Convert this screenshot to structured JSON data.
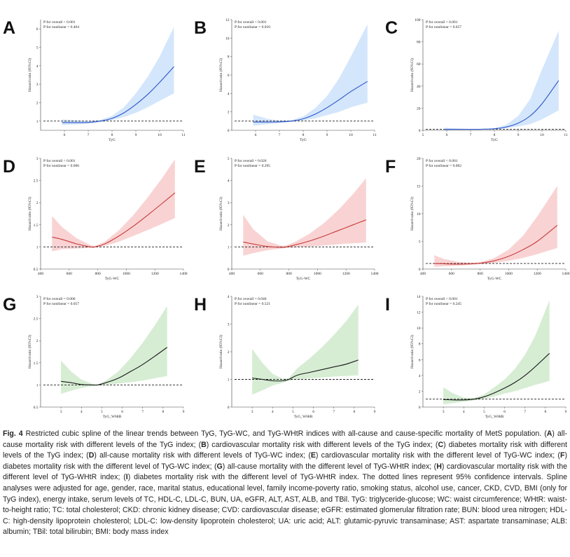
{
  "colors": {
    "blue": {
      "line": "#2c55c9",
      "band": "#d4e6fb"
    },
    "red": {
      "line": "#c63a3a",
      "band": "#f9d3d3"
    },
    "green": {
      "line": "#1a1a1a",
      "band": "#d6edd3"
    }
  },
  "chart_data": [
    {
      "panel": "A",
      "type": "line",
      "xlabel": "TyG",
      "ylabel": "Hazard ratio (95%CI)",
      "p_overall": "P for overall < 0.001",
      "p_nonlinear": "P for nonlinear = 0.404",
      "xlim": [
        5,
        11
      ],
      "xticks": [
        6,
        7,
        8,
        9,
        10,
        11
      ],
      "ylim": [
        0.5,
        6.5
      ],
      "yticks": [
        1,
        2,
        3,
        4,
        5,
        6
      ],
      "ref": 1,
      "color": "blue",
      "x": [
        5.9,
        6.5,
        7.0,
        7.5,
        8.0,
        8.5,
        9.0,
        9.5,
        10.0,
        10.6
      ],
      "y": [
        0.92,
        0.92,
        0.93,
        1.0,
        1.15,
        1.45,
        1.9,
        2.45,
        3.1,
        3.95
      ],
      "lower": [
        0.78,
        0.82,
        0.86,
        0.94,
        1.05,
        1.22,
        1.45,
        1.75,
        2.1,
        2.5
      ],
      "upper": [
        1.1,
        1.04,
        1.0,
        1.06,
        1.28,
        1.75,
        2.5,
        3.4,
        4.5,
        6.1
      ]
    },
    {
      "panel": "B",
      "type": "line",
      "xlabel": "TyG",
      "ylabel": "Hazard ratio (95%CI)",
      "p_overall": "P for overall < 0.001",
      "p_nonlinear": "P for nonlinear = 0.010",
      "xlim": [
        5,
        11
      ],
      "xticks": [
        6,
        7,
        8,
        9,
        10,
        11
      ],
      "ylim": [
        0,
        12
      ],
      "yticks": [
        0,
        2,
        4,
        6,
        8,
        10,
        12
      ],
      "ref": 1,
      "color": "blue",
      "x": [
        5.9,
        6.5,
        7.0,
        7.5,
        8.0,
        8.5,
        9.0,
        9.5,
        10.0,
        10.7
      ],
      "y": [
        0.9,
        0.9,
        0.92,
        1.0,
        1.25,
        1.75,
        2.45,
        3.3,
        4.2,
        5.3
      ],
      "lower": [
        0.5,
        0.65,
        0.8,
        0.92,
        1.05,
        1.3,
        1.65,
        2.0,
        2.5,
        3.0
      ],
      "upper": [
        1.7,
        1.25,
        1.06,
        1.1,
        1.5,
        2.4,
        3.7,
        5.6,
        8.0,
        11.5
      ]
    },
    {
      "panel": "C",
      "type": "line",
      "xlabel": "TyG",
      "ylabel": "Hazard ratio (95%CI)",
      "p_overall": "P for overall < 0.001",
      "p_nonlinear": "P for nonlinear = 0.657",
      "xlim": [
        5,
        11
      ],
      "xticks": [
        5,
        6,
        7,
        8,
        9,
        10,
        11
      ],
      "ylim": [
        0,
        100
      ],
      "yticks": [
        0,
        20,
        40,
        60,
        80,
        100
      ],
      "ref": 1,
      "color": "blue",
      "x": [
        5.9,
        6.5,
        7.0,
        7.5,
        8.0,
        8.5,
        9.0,
        9.5,
        10.0,
        10.7
      ],
      "y": [
        0.9,
        0.9,
        0.9,
        1.0,
        1.4,
        3.0,
        6.5,
        13.0,
        24.0,
        45.0
      ],
      "lower": [
        0.3,
        0.5,
        0.7,
        0.9,
        1.1,
        2.0,
        3.5,
        5.5,
        10.0,
        18.0
      ],
      "upper": [
        2.5,
        1.6,
        1.2,
        1.2,
        2.0,
        5.0,
        13.0,
        28.0,
        55.0,
        90.0
      ]
    },
    {
      "panel": "D",
      "type": "line",
      "xlabel": "TyG-WC",
      "ylabel": "Hazard ratio (95%CI)",
      "p_overall": "P for overall < 0.001",
      "p_nonlinear": "P for nonlinear = 0.006",
      "xlim": [
        400,
        1400
      ],
      "xticks": [
        400,
        600,
        800,
        1000,
        1200,
        1400
      ],
      "ylim": [
        0.5,
        3.0
      ],
      "yticks": [
        0.5,
        1.0,
        1.5,
        2.0,
        2.5,
        3.0
      ],
      "ref": 1,
      "color": "red",
      "x": [
        480,
        550,
        650,
        750,
        780,
        850,
        950,
        1050,
        1150,
        1250,
        1340
      ],
      "y": [
        1.22,
        1.17,
        1.07,
        1.0,
        1.0,
        1.07,
        1.25,
        1.47,
        1.72,
        1.98,
        2.22
      ],
      "lower": [
        0.9,
        0.95,
        0.96,
        0.98,
        0.99,
        1.02,
        1.12,
        1.25,
        1.38,
        1.52,
        1.65
      ],
      "upper": [
        1.7,
        1.45,
        1.2,
        1.04,
        1.02,
        1.12,
        1.38,
        1.72,
        2.12,
        2.55,
        2.98
      ]
    },
    {
      "panel": "E",
      "type": "line",
      "xlabel": "TyG-WC",
      "ylabel": "Hazard ratio (95%CI)",
      "p_overall": "P for overall = 0.026",
      "p_nonlinear": "P for nonlinear = 0.295",
      "xlim": [
        400,
        1400
      ],
      "xticks": [
        400,
        600,
        800,
        1000,
        1200,
        1400
      ],
      "ylim": [
        0,
        5
      ],
      "yticks": [
        0,
        1,
        2,
        3,
        4,
        5
      ],
      "ref": 1,
      "color": "red",
      "x": [
        480,
        550,
        650,
        750,
        780,
        850,
        950,
        1050,
        1150,
        1250,
        1340
      ],
      "y": [
        1.22,
        1.13,
        1.02,
        0.98,
        1.0,
        1.1,
        1.28,
        1.5,
        1.75,
        2.0,
        2.22
      ],
      "lower": [
        0.6,
        0.72,
        0.85,
        0.93,
        0.95,
        0.98,
        1.02,
        1.07,
        1.12,
        1.16,
        1.2
      ],
      "upper": [
        2.45,
        1.8,
        1.25,
        1.05,
        1.06,
        1.25,
        1.62,
        2.1,
        2.7,
        3.4,
        4.1
      ]
    },
    {
      "panel": "F",
      "type": "line",
      "xlabel": "TyG-WC",
      "ylabel": "Hazard ratio (95%CI)",
      "p_overall": "P for overall < 0.001",
      "p_nonlinear": "P for nonlinear = 0.002",
      "xlim": [
        400,
        1400
      ],
      "xticks": [
        400,
        600,
        800,
        1000,
        1200,
        1400
      ],
      "ylim": [
        0,
        20
      ],
      "yticks": [
        0,
        5,
        10,
        15,
        20
      ],
      "ref": 1,
      "color": "red",
      "x": [
        480,
        550,
        650,
        750,
        800,
        900,
        1000,
        1100,
        1200,
        1340
      ],
      "y": [
        1.0,
        0.95,
        0.88,
        0.95,
        1.05,
        1.5,
        2.3,
        3.5,
        5.0,
        7.9
      ],
      "lower": [
        0.4,
        0.5,
        0.6,
        0.8,
        0.9,
        1.1,
        1.5,
        2.0,
        2.7,
        3.8
      ],
      "upper": [
        2.5,
        1.8,
        1.3,
        1.15,
        1.25,
        2.0,
        3.5,
        6.0,
        9.5,
        15.0
      ]
    },
    {
      "panel": "G",
      "type": "line",
      "xlabel": "TyG_WHtR",
      "ylabel": "Hazard ratio (95%CI)",
      "p_overall": "P for overall = 0.006",
      "p_nonlinear": "P for nonlinear = 0.057",
      "xlim": [
        2,
        9
      ],
      "xticks": [
        3,
        4,
        5,
        6,
        7,
        8,
        9
      ],
      "ylim": [
        0.5,
        3.0
      ],
      "yticks": [
        0.5,
        1.0,
        1.5,
        2.0,
        2.5,
        3.0
      ],
      "ref": 1,
      "color": "green",
      "x": [
        3.0,
        3.5,
        4.0,
        4.5,
        4.8,
        5.2,
        5.8,
        6.4,
        7.0,
        7.6,
        8.2
      ],
      "y": [
        1.08,
        1.05,
        1.01,
        1.0,
        1.0,
        1.05,
        1.15,
        1.3,
        1.46,
        1.65,
        1.85
      ],
      "lower": [
        0.8,
        0.87,
        0.93,
        0.97,
        0.99,
        1.0,
        1.03,
        1.06,
        1.1,
        1.15,
        1.2
      ],
      "upper": [
        1.55,
        1.3,
        1.12,
        1.03,
        1.01,
        1.1,
        1.3,
        1.6,
        1.95,
        2.35,
        2.78
      ]
    },
    {
      "panel": "H",
      "type": "line",
      "xlabel": "TyG_WHtR",
      "ylabel": "Hazard ratio (95%CI)",
      "p_overall": "P for overall = 0.046",
      "p_nonlinear": "P for nonlinear = 0.521",
      "xlim": [
        2,
        9
      ],
      "xticks": [
        3,
        4,
        5,
        6,
        7,
        8,
        9
      ],
      "ylim": [
        0,
        4
      ],
      "yticks": [
        0,
        1,
        2,
        3,
        4
      ],
      "ref": 1,
      "color": "green",
      "x": [
        3.0,
        3.5,
        4.0,
        4.5,
        4.8,
        5.2,
        5.8,
        6.4,
        7.0,
        7.6,
        8.2
      ],
      "y": [
        1.05,
        1.0,
        0.95,
        0.95,
        1.0,
        1.15,
        1.25,
        1.35,
        1.45,
        1.55,
        1.7
      ],
      "lower": [
        0.45,
        0.6,
        0.78,
        0.88,
        0.95,
        1.0,
        1.04,
        1.07,
        1.1,
        1.12,
        1.15
      ],
      "upper": [
        2.1,
        1.6,
        1.2,
        1.02,
        1.05,
        1.4,
        1.75,
        2.15,
        2.6,
        3.1,
        3.7
      ]
    },
    {
      "panel": "I",
      "type": "line",
      "xlabel": "TyG_WHtR",
      "ylabel": "Hazard ratio (95%CI)",
      "p_overall": "P for overall < 0.001",
      "p_nonlinear": "P for nonlinear = 0.245",
      "xlim": [
        2,
        9
      ],
      "xticks": [
        3,
        4,
        5,
        6,
        7,
        8,
        9
      ],
      "ylim": [
        0,
        14
      ],
      "yticks": [
        0,
        2,
        4,
        6,
        8,
        10,
        12,
        14
      ],
      "ref": 1,
      "color": "green",
      "x": [
        3.0,
        3.5,
        4.0,
        4.5,
        5.0,
        5.5,
        6.0,
        6.5,
        7.0,
        7.5,
        8.2
      ],
      "y": [
        0.95,
        0.9,
        0.9,
        1.0,
        1.3,
        1.8,
        2.4,
        3.1,
        4.0,
        5.1,
        6.8
      ],
      "lower": [
        0.35,
        0.5,
        0.68,
        0.85,
        1.05,
        1.35,
        1.7,
        2.0,
        2.4,
        2.8,
        3.3
      ],
      "upper": [
        2.5,
        1.7,
        1.2,
        1.15,
        1.6,
        2.5,
        3.5,
        4.8,
        6.6,
        9.0,
        13.5
      ]
    }
  ],
  "caption": {
    "label": "Fig. 4",
    "segments": [
      {
        "t": "  Restricted cubic spline of the linear trends between TyG, TyG-WC, and TyG-WHtR indices with all-cause and cause-specific mortality of MetS population. ("
      },
      {
        "t": "A",
        "b": true
      },
      {
        "t": ") all-cause mortality risk with different levels of the TyG index; ("
      },
      {
        "t": "B",
        "b": true
      },
      {
        "t": ") cardiovascular mortality risk with different levels of the TyG index; ("
      },
      {
        "t": "C",
        "b": true
      },
      {
        "t": ") diabetes mortality risk with different levels of the TyG index; ("
      },
      {
        "t": "D",
        "b": true
      },
      {
        "t": ") all-cause mortality risk with different levels of TyG-WC index; ("
      },
      {
        "t": "E",
        "b": true
      },
      {
        "t": ") cardiovascular mortality risk with the different level of TyG-WC index; ("
      },
      {
        "t": "F",
        "b": true
      },
      {
        "t": ") diabetes mortality risk with the different level of TyG-WC index; ("
      },
      {
        "t": "G",
        "b": true
      },
      {
        "t": ") all-cause mortality with the different level of TyG-WHtR index; ("
      },
      {
        "t": "H",
        "b": true
      },
      {
        "t": ") cardiovascular mortality risk with the different level of TyG-WHtR index; ("
      },
      {
        "t": "I",
        "b": true
      },
      {
        "t": ") diabetes mortality risk with the different level of TyG-WHtR index. The dotted lines represent 95% confidence intervals. Spline analyses were adjusted for age, gender, race, marital status, educational level, family income-poverty ratio, smoking status, alcohol use, cancer, CKD, CVD, BMI (only for TyG index), energy intake, serum levels of TC, HDL-C, LDL-C, BUN, UA, eGFR, ALT, AST, ALB, and TBil. TyG: triglyceride-glucose; WC: waist circumference; WHtR: waist-to-height ratio; TC: total cholesterol; CKD: chronic kidney disease; CVD: cardiovascular disease; eGFR: estimated glomerular filtration rate; BUN: blood urea nitrogen; HDL-C: high-density lipoprotein cholesterol; LDL-C: low-density lipoprotein cholesterol; UA: uric acid; ALT: glutamic-pyruvic transaminase; AST: aspartate transaminase; ALB: albumin; TBil: total bilirubin; BMI: body mass index"
      }
    ]
  }
}
